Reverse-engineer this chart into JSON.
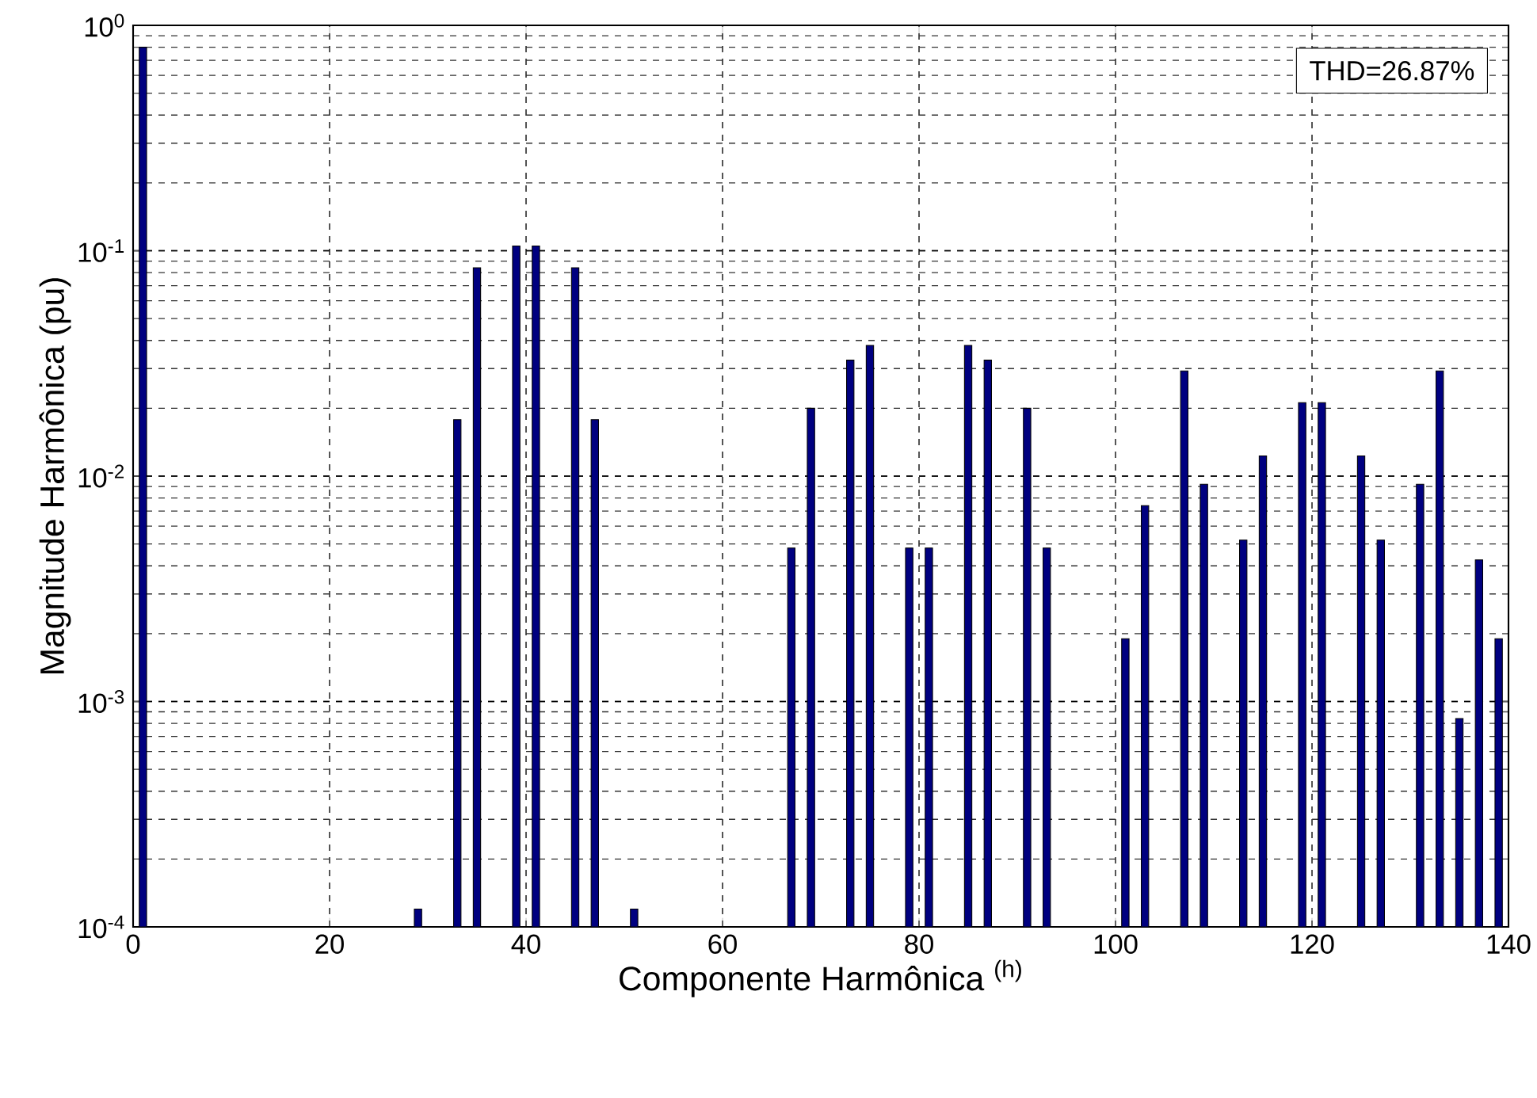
{
  "chart_data": {
    "type": "bar",
    "xlabel": "Componente Harmônica $^{(h)}$",
    "ylabel": "Magnitude Harmônica (pu)",
    "annotations": [
      "THD=26.87%"
    ],
    "x": [
      1,
      29,
      33,
      35,
      39,
      41,
      45,
      47,
      51,
      67,
      69,
      73,
      75,
      79,
      81,
      85,
      87,
      91,
      93,
      101,
      103,
      107,
      109,
      113,
      115,
      119,
      121,
      125,
      127,
      131,
      133,
      135,
      137,
      139
    ],
    "values": [
      0.8,
      0.00012,
      0.0178,
      0.084,
      0.105,
      0.105,
      0.084,
      0.0178,
      0.00012,
      0.0048,
      0.02,
      0.0327,
      0.038,
      0.0048,
      0.0048,
      0.038,
      0.0327,
      0.02,
      0.0048,
      0.0019,
      0.0074,
      0.0293,
      0.0092,
      0.0052,
      0.0123,
      0.0212,
      0.0212,
      0.0123,
      0.0052,
      0.0092,
      0.0293,
      0.00084,
      0.00425,
      0.0019
    ],
    "color": "#000080",
    "xlim": [
      0,
      140
    ],
    "xticks": [
      0,
      20,
      40,
      60,
      80,
      100,
      120,
      140
    ],
    "ylim": [
      0.0001,
      1
    ],
    "yticks": [
      {
        "value": 0.0001,
        "label": "10$^{-4}$"
      },
      {
        "value": 0.001,
        "label": "10$^{-3}$"
      },
      {
        "value": 0.01,
        "label": "10$^{-2}$"
      },
      {
        "value": 0.1,
        "label": "10$^{-1}$"
      },
      {
        "value": 1,
        "label": "10$^{0}$"
      }
    ],
    "log": "y",
    "grid": true
  }
}
